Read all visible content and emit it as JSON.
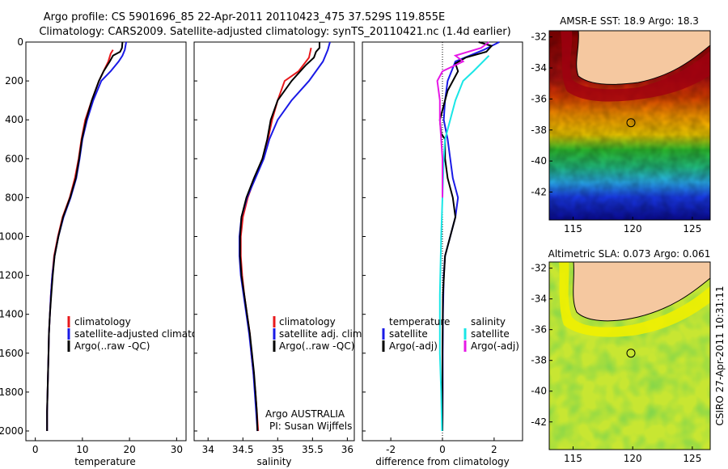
{
  "title_line1": "Argo profile: CS 5901696_85 22-Apr-2011 20110423_475 37.529S 119.855E",
  "title_line2": "Climatology: CARS2009. Satellite-adjusted climatology: synTS_20110421.nc (1.4d earlier)",
  "colors": {
    "climatology": "#e8191c",
    "satellite": "#1a1ae6",
    "argo": "#000000",
    "cyan": "#19e6e6",
    "magenta": "#e619e6"
  },
  "chart_data": [
    {
      "type": "line",
      "id": "temperature",
      "xlabel": "temperature",
      "ylabel": "",
      "xlim": [
        -2,
        32
      ],
      "ylim": [
        2050,
        0
      ],
      "xticks": [
        0,
        10,
        20,
        30
      ],
      "yticks": [
        0,
        200,
        400,
        600,
        800,
        1000,
        1200,
        1400,
        1600,
        1800,
        2000
      ],
      "legend": [
        "climatology",
        "satellite-adjusted climatology",
        "Argo(..raw -QC)"
      ],
      "series": [
        {
          "name": "climatology",
          "color": "red",
          "points": [
            [
              16.5,
              40
            ],
            [
              16,
              60
            ],
            [
              15.5,
              100
            ],
            [
              13.5,
              200
            ],
            [
              12,
              300
            ],
            [
              10.6,
              400
            ],
            [
              9.8,
              500
            ],
            [
              9.2,
              600
            ],
            [
              8.4,
              700
            ],
            [
              7.3,
              800
            ],
            [
              5.8,
              900
            ],
            [
              4.8,
              1000
            ],
            [
              4,
              1100
            ],
            [
              3.6,
              1200
            ],
            [
              3.3,
              1300
            ],
            [
              3.1,
              1400
            ],
            [
              2.9,
              1500
            ],
            [
              2.8,
              1600
            ],
            [
              2.7,
              1700
            ],
            [
              2.6,
              1800
            ],
            [
              2.5,
              1900
            ],
            [
              2.5,
              2000
            ]
          ]
        },
        {
          "name": "satellite",
          "color": "blue",
          "points": [
            [
              19.3,
              0
            ],
            [
              19,
              40
            ],
            [
              18.5,
              70
            ],
            [
              17.7,
              100
            ],
            [
              16,
              150
            ],
            [
              14,
              200
            ],
            [
              12.3,
              300
            ],
            [
              11,
              400
            ],
            [
              10,
              500
            ],
            [
              9.4,
              600
            ],
            [
              8.7,
              700
            ],
            [
              7.5,
              800
            ],
            [
              6,
              900
            ],
            [
              4.9,
              1000
            ],
            [
              4.1,
              1100
            ],
            [
              3.6,
              1200
            ],
            [
              3.3,
              1300
            ],
            [
              3.1,
              1400
            ],
            [
              2.9,
              1500
            ],
            [
              2.8,
              1600
            ],
            [
              2.7,
              1700
            ],
            [
              2.6,
              1800
            ],
            [
              2.5,
              1900
            ],
            [
              2.5,
              2000
            ]
          ]
        },
        {
          "name": "argo",
          "color": "black",
          "points": [
            [
              18.5,
              0
            ],
            [
              18.4,
              30
            ],
            [
              18,
              50
            ],
            [
              16.5,
              70
            ],
            [
              15.8,
              100
            ],
            [
              14.5,
              150
            ],
            [
              13.5,
              200
            ],
            [
              12,
              300
            ],
            [
              10.8,
              400
            ],
            [
              9.9,
              500
            ],
            [
              9.3,
              600
            ],
            [
              8.6,
              700
            ],
            [
              7.4,
              800
            ],
            [
              5.9,
              900
            ],
            [
              4.9,
              1000
            ],
            [
              4.1,
              1100
            ],
            [
              3.7,
              1200
            ],
            [
              3.4,
              1300
            ],
            [
              3.1,
              1400
            ],
            [
              2.9,
              1500
            ],
            [
              2.8,
              1600
            ],
            [
              2.7,
              1700
            ],
            [
              2.6,
              1800
            ],
            [
              2.5,
              1900
            ],
            [
              2.5,
              2000
            ]
          ]
        }
      ]
    },
    {
      "type": "line",
      "id": "salinity",
      "xlabel": "salinity",
      "xlim": [
        33.8,
        36.1
      ],
      "ylim": [
        2050,
        0
      ],
      "xticks": [
        34,
        34.5,
        35,
        35.5,
        36
      ],
      "legend": [
        "climatology",
        "satellite adj. clim.",
        "Argo(..raw -QC)"
      ],
      "series": [
        {
          "name": "climatology",
          "color": "red",
          "points": [
            [
              35.48,
              30
            ],
            [
              35.45,
              80
            ],
            [
              35.3,
              150
            ],
            [
              35.1,
              200
            ],
            [
              35,
              300
            ],
            [
              34.92,
              400
            ],
            [
              34.86,
              500
            ],
            [
              34.78,
              600
            ],
            [
              34.67,
              700
            ],
            [
              34.57,
              800
            ],
            [
              34.5,
              900
            ],
            [
              34.47,
              1000
            ],
            [
              34.47,
              1100
            ],
            [
              34.49,
              1200
            ],
            [
              34.52,
              1300
            ],
            [
              34.56,
              1400
            ],
            [
              34.6,
              1500
            ],
            [
              34.62,
              1600
            ],
            [
              34.65,
              1700
            ],
            [
              34.68,
              1800
            ],
            [
              34.7,
              1900
            ],
            [
              34.72,
              2000
            ]
          ]
        },
        {
          "name": "satellite",
          "color": "blue",
          "points": [
            [
              35.75,
              0
            ],
            [
              35.72,
              40
            ],
            [
              35.65,
              100
            ],
            [
              35.45,
              200
            ],
            [
              35.2,
              300
            ],
            [
              35,
              400
            ],
            [
              34.88,
              500
            ],
            [
              34.8,
              600
            ],
            [
              34.68,
              700
            ],
            [
              34.56,
              800
            ],
            [
              34.48,
              900
            ],
            [
              34.45,
              1000
            ],
            [
              34.45,
              1100
            ],
            [
              34.47,
              1200
            ],
            [
              34.51,
              1300
            ],
            [
              34.55,
              1400
            ],
            [
              34.59,
              1500
            ],
            [
              34.62,
              1600
            ],
            [
              34.65,
              1700
            ],
            [
              34.67,
              1800
            ],
            [
              34.69,
              1900
            ],
            [
              34.71,
              2000
            ]
          ]
        },
        {
          "name": "argo",
          "color": "black",
          "points": [
            [
              35.6,
              0
            ],
            [
              35.6,
              30
            ],
            [
              35.55,
              50
            ],
            [
              35.52,
              80
            ],
            [
              35.4,
              120
            ],
            [
              35.2,
              200
            ],
            [
              35,
              300
            ],
            [
              34.9,
              400
            ],
            [
              34.85,
              500
            ],
            [
              34.78,
              600
            ],
            [
              34.66,
              700
            ],
            [
              34.55,
              800
            ],
            [
              34.48,
              900
            ],
            [
              34.46,
              1000
            ],
            [
              34.46,
              1100
            ],
            [
              34.48,
              1200
            ],
            [
              34.52,
              1300
            ],
            [
              34.56,
              1400
            ],
            [
              34.6,
              1500
            ],
            [
              34.63,
              1600
            ],
            [
              34.66,
              1700
            ],
            [
              34.68,
              1800
            ],
            [
              34.7,
              1900
            ],
            [
              34.71,
              2000
            ]
          ]
        }
      ]
    },
    {
      "type": "line",
      "id": "difference",
      "xlabel": "difference from climatology",
      "xlim": [
        -3.1,
        3.1
      ],
      "ylim": [
        2050,
        0
      ],
      "xticks": [
        -2,
        0,
        2
      ],
      "legend_left_title": "temperature",
      "legend_right_title": "salinity",
      "legend_left": [
        "satellite",
        "Argo(-adj)"
      ],
      "legend_right": [
        "satellite",
        "Argo(-adj)"
      ],
      "series": [
        {
          "name": "temperature satellite",
          "color": "blue",
          "points": [
            [
              2.2,
              0
            ],
            [
              1.6,
              40
            ],
            [
              0.5,
              100
            ],
            [
              0.2,
              200
            ],
            [
              0.1,
              300
            ],
            [
              0.05,
              400
            ],
            [
              0.2,
              500
            ],
            [
              0.3,
              600
            ],
            [
              0.4,
              700
            ],
            [
              0.6,
              800
            ],
            [
              0.5,
              900
            ],
            [
              0.3,
              1000
            ],
            [
              0.1,
              1100
            ],
            [
              0.05,
              1200
            ],
            [
              0.02,
              1400
            ],
            [
              0.01,
              1600
            ],
            [
              0.01,
              1800
            ],
            [
              0,
              2000
            ]
          ]
        },
        {
          "name": "temperature argo",
          "color": "black",
          "points": [
            [
              1.4,
              0
            ],
            [
              1.9,
              20
            ],
            [
              1.7,
              50
            ],
            [
              0.9,
              80
            ],
            [
              0.5,
              110
            ],
            [
              0.6,
              150
            ],
            [
              0.2,
              250
            ],
            [
              0.1,
              300
            ],
            [
              -0.1,
              400
            ],
            [
              -0.05,
              470
            ],
            [
              0.1,
              500
            ],
            [
              0.1,
              600
            ],
            [
              0.2,
              700
            ],
            [
              0.4,
              800
            ],
            [
              0.5,
              900
            ],
            [
              0.3,
              1000
            ],
            [
              0.1,
              1100
            ],
            [
              0.02,
              1300
            ],
            [
              0,
              1600
            ],
            [
              0,
              2000
            ]
          ]
        },
        {
          "name": "salinity satellite",
          "color": "cyan",
          "points": [
            [
              1.8,
              70
            ],
            [
              1.2,
              150
            ],
            [
              0.8,
              200
            ],
            [
              0.5,
              300
            ],
            [
              0.1,
              500
            ],
            [
              0.05,
              600
            ],
            [
              -0.05,
              1000
            ],
            [
              -0.1,
              1300
            ],
            [
              -0.1,
              1600
            ],
            [
              -0.05,
              1800
            ],
            [
              -0.02,
              2000
            ]
          ]
        },
        {
          "name": "salinity argo",
          "color": "magenta",
          "points": [
            [
              1.8,
              0
            ],
            [
              1.5,
              30
            ],
            [
              0.5,
              70
            ],
            [
              0.8,
              100
            ],
            [
              0,
              150
            ],
            [
              -0.2,
              200
            ],
            [
              -0.1,
              300
            ],
            [
              -0.1,
              400
            ],
            [
              -0.05,
              500
            ],
            [
              0,
              600
            ],
            [
              0,
              800
            ]
          ]
        }
      ]
    },
    {
      "type": "heatmap",
      "id": "sst_map",
      "title": "AMSR-E SST: 18.9 Argo: 18.3",
      "xlim": [
        113,
        126.5
      ],
      "ylim": [
        -43.8,
        -31.6
      ],
      "xticks": [
        115,
        120,
        125
      ],
      "yticks": [
        -32,
        -34,
        -36,
        -38,
        -40,
        -42
      ],
      "marker": [
        119.855,
        -37.529
      ]
    },
    {
      "type": "heatmap",
      "id": "sla_map",
      "title": "Altimetric SLA: 0.073 Argo: 0.061",
      "xlim": [
        113,
        126.5
      ],
      "ylim": [
        -43.8,
        -31.6
      ],
      "xticks": [
        115,
        120,
        125
      ],
      "yticks": [
        -32,
        -34,
        -36,
        -38,
        -40,
        -42
      ],
      "marker": [
        119.855,
        -37.529
      ]
    }
  ],
  "argo_label": "Argo AUSTRALIA",
  "pi_label": "PI: Susan Wijffels",
  "footer": "CSIRO 27-Apr-2011 10:31:11"
}
